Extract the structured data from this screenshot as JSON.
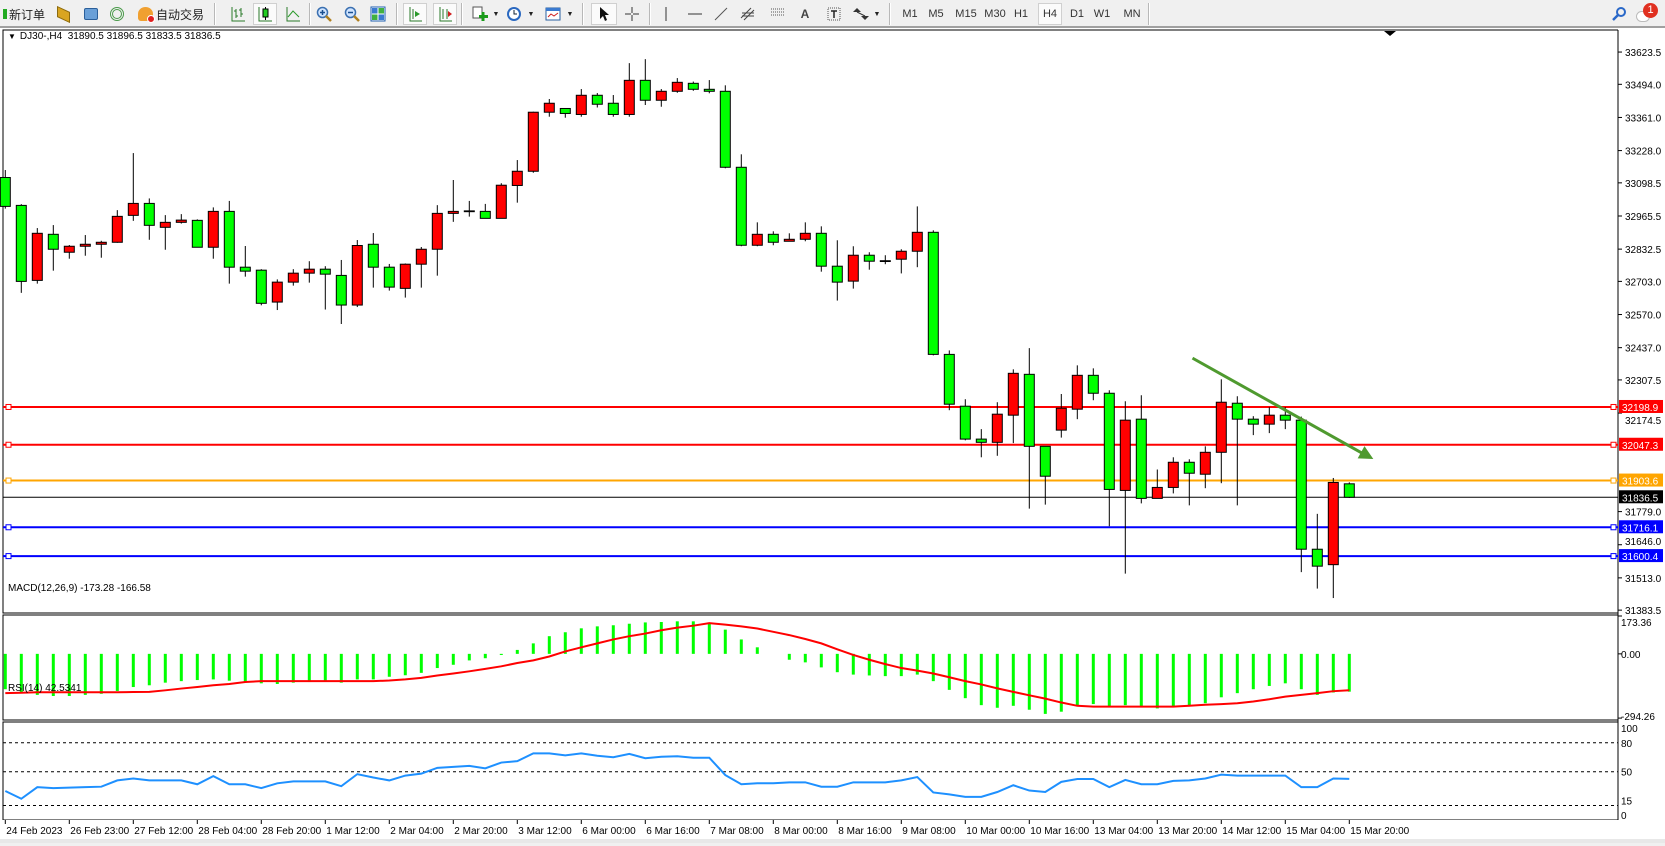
{
  "toolbar": {
    "new_order": "新订单",
    "auto_trading": "自动交易",
    "timeframes": [
      "M1",
      "M5",
      "M15",
      "M30",
      "H1",
      "H4",
      "D1",
      "W1",
      "MN"
    ],
    "active_timeframe": "H4",
    "text_tool": "A",
    "notification_count": "1"
  },
  "chart": {
    "header": "DJ30-,H4  31890.5 31896.5 31833.5 31836.5",
    "macd_label": "MACD(12,26,9) -173.28 -166.58",
    "rsi_label": "RSI(14) 42.5341",
    "colors": {
      "bull": "#ff0000",
      "bear": "#00ff00",
      "macd_hist": "#00ff00",
      "macd_signal": "#ff0000",
      "rsi": "#1e90ff",
      "trendline": "#4f9a2f"
    }
  },
  "chart_data": {
    "type": "candlestick",
    "symbol": "DJ30-",
    "timeframe": "H4",
    "ylim": [
      31372,
      33712
    ],
    "price_ticks": [
      "33623.5",
      "33494.0",
      "33361.0",
      "33228.0",
      "33098.5",
      "32965.5",
      "32832.5",
      "32703.0",
      "32570.0",
      "32437.0",
      "32307.5",
      "32174.5",
      "31779.0",
      "31646.0",
      "31513.0",
      "31383.5"
    ],
    "time_labels": [
      "24 Feb 2023",
      "26 Feb 23:00",
      "27 Feb 12:00",
      "28 Feb 04:00",
      "28 Feb 20:00",
      "1 Mar 12:00",
      "2 Mar 04:00",
      "2 Mar 20:00",
      "3 Mar 12:00",
      "6 Mar 00:00",
      "6 Mar 16:00",
      "7 Mar 08:00",
      "8 Mar 00:00",
      "8 Mar 16:00",
      "9 Mar 08:00",
      "10 Mar 00:00",
      "10 Mar 16:00",
      "13 Mar 04:00",
      "13 Mar 20:00",
      "14 Mar 12:00",
      "15 Mar 04:00",
      "15 Mar 20:00"
    ],
    "candles_ohlc": [
      [
        33120,
        33150,
        32995,
        33004
      ],
      [
        33008,
        33013,
        32657,
        32703
      ],
      [
        32707,
        32917,
        32694,
        32896
      ],
      [
        32892,
        32929,
        32746,
        32832
      ],
      [
        32820,
        32849,
        32794,
        32844
      ],
      [
        32844,
        32889,
        32806,
        32852
      ],
      [
        32852,
        32866,
        32798,
        32860
      ],
      [
        32860,
        32989,
        32858,
        32964
      ],
      [
        32968,
        33218,
        32946,
        33016
      ],
      [
        33016,
        33036,
        32870,
        32928
      ],
      [
        32920,
        32969,
        32830,
        32940
      ],
      [
        32940,
        32973,
        32935,
        32949
      ],
      [
        32948,
        32952,
        32840,
        32840
      ],
      [
        32840,
        33000,
        32794,
        32984
      ],
      [
        32984,
        33026,
        32694,
        32760
      ],
      [
        32760,
        32845,
        32722,
        32744
      ],
      [
        32748,
        32752,
        32607,
        32615
      ],
      [
        32620,
        32711,
        32588,
        32700
      ],
      [
        32700,
        32752,
        32686,
        32736
      ],
      [
        32736,
        32784,
        32698,
        32752
      ],
      [
        32752,
        32764,
        32590,
        32732
      ],
      [
        32727,
        32789,
        32532,
        32608
      ],
      [
        32608,
        32869,
        32600,
        32847
      ],
      [
        32852,
        32897,
        32678,
        32760
      ],
      [
        32760,
        32773,
        32666,
        32680
      ],
      [
        32675,
        32775,
        32638,
        32772
      ],
      [
        32772,
        32841,
        32678,
        32832
      ],
      [
        32832,
        33009,
        32726,
        32976
      ],
      [
        32976,
        33110,
        32942,
        32984
      ],
      [
        32984,
        33026,
        32963,
        32986
      ],
      [
        32984,
        33014,
        32956,
        32956
      ],
      [
        32956,
        33097,
        32956,
        33089
      ],
      [
        33088,
        33190,
        33019,
        33145
      ],
      [
        33145,
        33384,
        33139,
        33382
      ],
      [
        33382,
        33435,
        33364,
        33418
      ],
      [
        33397,
        33397,
        33360,
        33377
      ],
      [
        33373,
        33475,
        33364,
        33450
      ],
      [
        33450,
        33459,
        33401,
        33414
      ],
      [
        33418,
        33451,
        33364,
        33373
      ],
      [
        33373,
        33579,
        33364,
        33510
      ],
      [
        33510,
        33595,
        33411,
        33430
      ],
      [
        33430,
        33475,
        33404,
        33466
      ],
      [
        33466,
        33519,
        33460,
        33502
      ],
      [
        33498,
        33505,
        33468,
        33474
      ],
      [
        33474,
        33511,
        33458,
        33466
      ],
      [
        33466,
        33490,
        33157,
        33161
      ],
      [
        33161,
        33213,
        32844,
        32848
      ],
      [
        32848,
        32940,
        32844,
        32892
      ],
      [
        32892,
        32904,
        32848,
        32860
      ],
      [
        32864,
        32896,
        32864,
        32872
      ],
      [
        32872,
        32940,
        32864,
        32896
      ],
      [
        32896,
        32924,
        32742,
        32764
      ],
      [
        32764,
        32868,
        32626,
        32700
      ],
      [
        32704,
        32844,
        32674,
        32808
      ],
      [
        32808,
        32820,
        32750,
        32784
      ],
      [
        32786,
        32808,
        32772,
        32786
      ],
      [
        32792,
        32832,
        32735,
        32824
      ],
      [
        32824,
        33004,
        32760,
        32900
      ],
      [
        32900,
        32908,
        32406,
        32410
      ],
      [
        32410,
        32426,
        32186,
        32210
      ],
      [
        32202,
        32230,
        32065,
        32070
      ],
      [
        32070,
        32110,
        31997,
        32057
      ],
      [
        32057,
        32218,
        32003,
        32170
      ],
      [
        32166,
        32350,
        32054,
        32334
      ],
      [
        32330,
        32435,
        31791,
        32041
      ],
      [
        32041,
        32041,
        31807,
        31921
      ],
      [
        32106,
        32251,
        32076,
        32194
      ],
      [
        32190,
        32366,
        32150,
        32326
      ],
      [
        32326,
        32354,
        32226,
        32254
      ],
      [
        32254,
        32266,
        31720,
        31868
      ],
      [
        31864,
        32222,
        31530,
        32146
      ],
      [
        32150,
        32246,
        31812,
        31832
      ],
      [
        31832,
        31948,
        31832,
        31876
      ],
      [
        31876,
        31997,
        31852,
        31977
      ],
      [
        31977,
        31989,
        31804,
        31933
      ],
      [
        31929,
        32041,
        31873,
        32017
      ],
      [
        32017,
        32310,
        31893,
        32218
      ],
      [
        32214,
        32242,
        31804,
        32150
      ],
      [
        32150,
        32162,
        32086,
        32130
      ],
      [
        32130,
        32198,
        32094,
        32166
      ],
      [
        32166,
        32198,
        32110,
        32146
      ],
      [
        32146,
        32160,
        31536,
        31628
      ],
      [
        31628,
        31770,
        31470,
        31560
      ],
      [
        31566,
        31914,
        31432,
        31896
      ],
      [
        31890.5,
        31896.5,
        31833.5,
        31836.5
      ]
    ],
    "horizontal_lines": [
      {
        "price": "32198.9",
        "color": "#ff0000",
        "label_text": "#ffffff"
      },
      {
        "price": "32047.3",
        "color": "#ff0000",
        "label_text": "#ffffff"
      },
      {
        "price": "31903.6",
        "color": "#ffa500",
        "label_text": "#ffffff"
      },
      {
        "price": "31716.1",
        "color": "#0000ff",
        "label_text": "#ffffff"
      },
      {
        "price": "31600.4",
        "color": "#0000ff",
        "label_text": "#ffffff"
      }
    ],
    "current_price": "31836.5",
    "trendline": {
      "from": {
        "bar": 74.2,
        "price": 32395
      },
      "to": {
        "bar": 85.5,
        "price": 31990
      },
      "arrow": true
    },
    "macd": {
      "ylim": [
        -303,
        178
      ],
      "ticks": [
        "173.36",
        "0.00",
        "-294.26"
      ],
      "histogram": [
        -162,
        -177,
        -188,
        -193,
        -193,
        -188,
        -183,
        -170,
        -152,
        -144,
        -132,
        -125,
        -120,
        -117,
        -123,
        -129,
        -135,
        -138,
        -132,
        -129,
        -125,
        -132,
        -117,
        -117,
        -105,
        -98,
        -87,
        -65,
        -50,
        -30,
        -20,
        -5,
        18,
        48,
        81,
        99,
        117,
        126,
        131,
        138,
        144,
        146,
        149,
        149,
        141,
        111,
        66,
        30,
        0,
        -27,
        -39,
        -62,
        -84,
        -95,
        -99,
        -102,
        -102,
        -95,
        -125,
        -165,
        -203,
        -235,
        -247,
        -238,
        -256,
        -275,
        -265,
        -238,
        -230,
        -241,
        -235,
        -241,
        -250,
        -241,
        -238,
        -226,
        -199,
        -180,
        -162,
        -147,
        -135,
        -162,
        -188,
        -177,
        -173.28
      ],
      "signal": [
        -180,
        -178,
        -176,
        -176,
        -176,
        -176,
        -176,
        -176,
        -175,
        -174,
        -167,
        -159,
        -152,
        -144,
        -138,
        -129,
        -125,
        -125,
        -125,
        -125,
        -125,
        -125,
        -125,
        -125,
        -122,
        -117,
        -110,
        -99,
        -90,
        -80,
        -69,
        -57,
        -42,
        -30,
        -12,
        11,
        30,
        48,
        66,
        81,
        93,
        108,
        120,
        129,
        141,
        134,
        126,
        116,
        101,
        86,
        68,
        48,
        21,
        -5,
        -27,
        -47,
        -65,
        -77,
        -90,
        -107,
        -125,
        -140,
        -158,
        -174,
        -190,
        -205,
        -223,
        -238,
        -242,
        -242,
        -242,
        -242,
        -242,
        -242,
        -238,
        -233,
        -230,
        -226,
        -218,
        -208,
        -196,
        -188,
        -180,
        -171,
        -166.58
      ]
    },
    "rsi": {
      "ylim": [
        0,
        101.5
      ],
      "ticks": [
        "100",
        "80",
        "50",
        "15",
        "0"
      ],
      "levels": [
        80,
        50,
        15
      ],
      "values": [
        30,
        22,
        34,
        33,
        33.5,
        34,
        34.5,
        41,
        43,
        41,
        41,
        41,
        37,
        45.5,
        37,
        37,
        33,
        38,
        40,
        40,
        40,
        35,
        47.5,
        44,
        41,
        46,
        48,
        54,
        55,
        56,
        53.5,
        59.5,
        61,
        69,
        69,
        67,
        69,
        66.5,
        65,
        68.5,
        64,
        65.5,
        66,
        64.5,
        64.5,
        46.5,
        37,
        38,
        38,
        39,
        39,
        34.5,
        34.5,
        39,
        39,
        39,
        41,
        44.5,
        28.5,
        26.5,
        24,
        24,
        29,
        36,
        30.5,
        29,
        39.5,
        42.5,
        42.5,
        34,
        41.5,
        37,
        37,
        40.5,
        41,
        43,
        47,
        46,
        46,
        46,
        46,
        34,
        34,
        43,
        42.53
      ]
    }
  }
}
